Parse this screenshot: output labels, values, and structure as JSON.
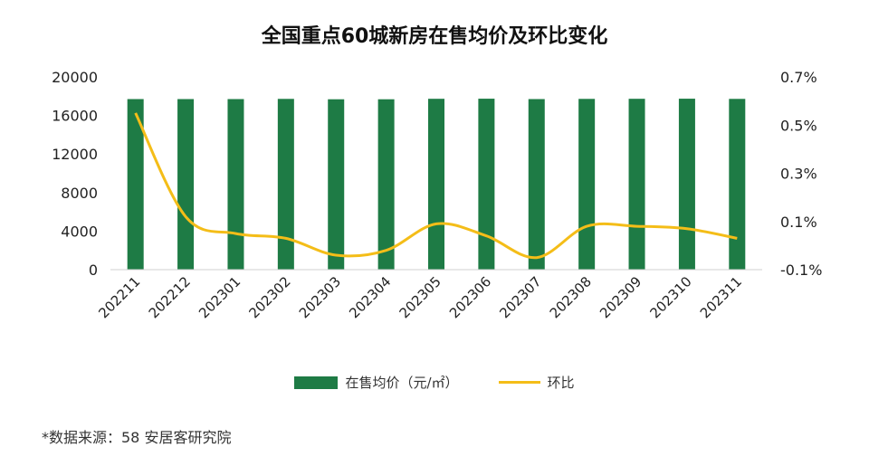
{
  "chart_data": {
    "type": "bar",
    "title": "全国重点60城新房在售均价及环比变化",
    "categories": [
      "202211",
      "202212",
      "202301",
      "202302",
      "202303",
      "202304",
      "202305",
      "202306",
      "202307",
      "202308",
      "202309",
      "202310",
      "202311"
    ],
    "series": [
      {
        "name": "在售均价（元/㎡）",
        "type": "bar",
        "axis": "left",
        "values": [
          17700,
          17700,
          17700,
          17720,
          17680,
          17680,
          17730,
          17740,
          17700,
          17720,
          17730,
          17740,
          17720
        ]
      },
      {
        "name": "环比",
        "type": "line",
        "smooth": true,
        "axis": "right",
        "unit": "%",
        "values": [
          0.55,
          0.12,
          0.05,
          0.03,
          -0.04,
          -0.02,
          0.09,
          0.04,
          -0.05,
          0.08,
          0.08,
          0.07,
          0.03
        ]
      }
    ],
    "y_left": {
      "ylim": [
        0,
        20000
      ],
      "ticks": [
        0,
        4000,
        8000,
        12000,
        16000,
        20000
      ]
    },
    "y_right": {
      "ylim": [
        -0.1,
        0.7
      ],
      "ticks": [
        "-0.1%",
        "0.1%",
        "0.3%",
        "0.5%",
        "0.7%"
      ]
    },
    "legend_position": "bottom",
    "grid": false,
    "colors": {
      "bar": "#1e7b45",
      "line": "#f4bd18"
    }
  },
  "source_note": "*数据来源：58 安居客研究院"
}
